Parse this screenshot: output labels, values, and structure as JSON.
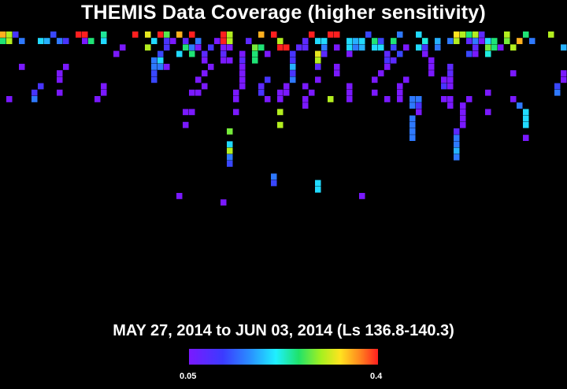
{
  "title": "THEMIS Data Coverage (higher sensitivity)",
  "date_range": "MAY 27, 2014 to JUN 03, 2014 (Ls 136.8-140.3)",
  "chart_data": {
    "type": "heatmap",
    "title": "THEMIS Data Coverage (higher sensitivity)",
    "subtitle": "MAY 27, 2014 to JUN 03, 2014 (Ls 136.8-140.3)",
    "colorbar": {
      "min": 0.05,
      "max": 0.4,
      "min_label": "0.05",
      "max_label": "0.4"
    },
    "grid": {
      "cols": 90,
      "rows": 28
    },
    "cells": [
      [
        0,
        0,
        0.35
      ],
      [
        1,
        0,
        0.3
      ],
      [
        2,
        0,
        0.1
      ],
      [
        8,
        0,
        0.12
      ],
      [
        12,
        0,
        0.4
      ],
      [
        13,
        0,
        0.4
      ],
      [
        16,
        0,
        0.24
      ],
      [
        21,
        0,
        0.4
      ],
      [
        23,
        0,
        0.32
      ],
      [
        25,
        0,
        0.4
      ],
      [
        26,
        0,
        0.27
      ],
      [
        28,
        0,
        0.35
      ],
      [
        30,
        0,
        0.4
      ],
      [
        35,
        0,
        0.4
      ],
      [
        36,
        0,
        0.3
      ],
      [
        41,
        0,
        0.35
      ],
      [
        43,
        0,
        0.4
      ],
      [
        49,
        0,
        0.4
      ],
      [
        52,
        0,
        0.4
      ],
      [
        53,
        0,
        0.4
      ],
      [
        58,
        0,
        0.12
      ],
      [
        63,
        0,
        0.15
      ],
      [
        66,
        0,
        0.2
      ],
      [
        72,
        0,
        0.33
      ],
      [
        73,
        0,
        0.3
      ],
      [
        74,
        0,
        0.25
      ],
      [
        75,
        0,
        0.3
      ],
      [
        76,
        0,
        0.08
      ],
      [
        80,
        0,
        0.3
      ],
      [
        83,
        0,
        0.25
      ],
      [
        87,
        0,
        0.3
      ],
      [
        0,
        1,
        0.25
      ],
      [
        1,
        1,
        0.3
      ],
      [
        3,
        1,
        0.15
      ],
      [
        6,
        1,
        0.2
      ],
      [
        7,
        1,
        0.18
      ],
      [
        9,
        1,
        0.15
      ],
      [
        10,
        1,
        0.1
      ],
      [
        13,
        1,
        0.05
      ],
      [
        14,
        1,
        0.25
      ],
      [
        16,
        1,
        0.2
      ],
      [
        24,
        1,
        0.2
      ],
      [
        26,
        1,
        0.1
      ],
      [
        27,
        1,
        0.05
      ],
      [
        29,
        1,
        0.08
      ],
      [
        31,
        1,
        0.15
      ],
      [
        34,
        1,
        0.05
      ],
      [
        35,
        1,
        0.4
      ],
      [
        36,
        1,
        0.3
      ],
      [
        39,
        1,
        0.08
      ],
      [
        44,
        1,
        0.3
      ],
      [
        48,
        1,
        0.08
      ],
      [
        50,
        1,
        0.2
      ],
      [
        51,
        1,
        0.2
      ],
      [
        55,
        1,
        0.2
      ],
      [
        56,
        1,
        0.18
      ],
      [
        57,
        1,
        0.2
      ],
      [
        59,
        1,
        0.25
      ],
      [
        60,
        1,
        0.12
      ],
      [
        62,
        1,
        0.25
      ],
      [
        67,
        1,
        0.22
      ],
      [
        69,
        1,
        0.18
      ],
      [
        71,
        1,
        0.15
      ],
      [
        72,
        1,
        0.3
      ],
      [
        74,
        1,
        0.08
      ],
      [
        75,
        1,
        0.15
      ],
      [
        76,
        1,
        0.05
      ],
      [
        77,
        1,
        0.2
      ],
      [
        78,
        1,
        0.25
      ],
      [
        80,
        1,
        0.28
      ],
      [
        82,
        1,
        0.35
      ],
      [
        84,
        1,
        0.15
      ],
      [
        19,
        2,
        0.05
      ],
      [
        23,
        2,
        0.3
      ],
      [
        26,
        2,
        0.1
      ],
      [
        29,
        2,
        0.25
      ],
      [
        30,
        2,
        0.15
      ],
      [
        31,
        2,
        0.05
      ],
      [
        33,
        2,
        0.1
      ],
      [
        35,
        2,
        0.05
      ],
      [
        36,
        2,
        0.05
      ],
      [
        40,
        2,
        0.28
      ],
      [
        41,
        2,
        0.25
      ],
      [
        44,
        2,
        0.4
      ],
      [
        45,
        2,
        0.4
      ],
      [
        47,
        2,
        0.08
      ],
      [
        48,
        2,
        0.08
      ],
      [
        51,
        2,
        0.15
      ],
      [
        53,
        2,
        0.05
      ],
      [
        55,
        2,
        0.2
      ],
      [
        56,
        2,
        0.15
      ],
      [
        57,
        2,
        0.18
      ],
      [
        59,
        2,
        0.2
      ],
      [
        60,
        2,
        0.2
      ],
      [
        62,
        2,
        0.12
      ],
      [
        64,
        2,
        0.05
      ],
      [
        66,
        2,
        0.2
      ],
      [
        67,
        2,
        0.1
      ],
      [
        69,
        2,
        0.15
      ],
      [
        75,
        2,
        0.08
      ],
      [
        77,
        2,
        0.28
      ],
      [
        78,
        2,
        0.25
      ],
      [
        79,
        2,
        0.05
      ],
      [
        81,
        2,
        0.3
      ],
      [
        89,
        2,
        0.18
      ],
      [
        18,
        3,
        0.05
      ],
      [
        25,
        3,
        0.12
      ],
      [
        28,
        3,
        0.2
      ],
      [
        30,
        3,
        0.25
      ],
      [
        32,
        3,
        0.08
      ],
      [
        35,
        3,
        0.08
      ],
      [
        38,
        3,
        0.05
      ],
      [
        40,
        3,
        0.25
      ],
      [
        42,
        3,
        0.05
      ],
      [
        46,
        3,
        0.1
      ],
      [
        50,
        3,
        0.32
      ],
      [
        51,
        3,
        0.08
      ],
      [
        55,
        3,
        0.05
      ],
      [
        61,
        3,
        0.08
      ],
      [
        63,
        3,
        0.12
      ],
      [
        67,
        3,
        0.05
      ],
      [
        74,
        3,
        0.12
      ],
      [
        75,
        3,
        0.05
      ],
      [
        77,
        3,
        0.22
      ],
      [
        24,
        4,
        0.15
      ],
      [
        25,
        4,
        0.2
      ],
      [
        32,
        4,
        0.05
      ],
      [
        35,
        4,
        0.05
      ],
      [
        36,
        4,
        0.05
      ],
      [
        38,
        4,
        0.08
      ],
      [
        40,
        4,
        0.25
      ],
      [
        46,
        4,
        0.1
      ],
      [
        50,
        4,
        0.3
      ],
      [
        61,
        4,
        0.1
      ],
      [
        62,
        4,
        0.08
      ],
      [
        68,
        4,
        0.05
      ],
      [
        3,
        5,
        0.05
      ],
      [
        10,
        5,
        0.05
      ],
      [
        24,
        5,
        0.15
      ],
      [
        25,
        5,
        0.15
      ],
      [
        26,
        5,
        0.05
      ],
      [
        33,
        5,
        0.05
      ],
      [
        38,
        5,
        0.05
      ],
      [
        46,
        5,
        0.18
      ],
      [
        50,
        5,
        0.08
      ],
      [
        53,
        5,
        0.05
      ],
      [
        61,
        5,
        0.05
      ],
      [
        68,
        5,
        0.05
      ],
      [
        71,
        5,
        0.08
      ],
      [
        9,
        6,
        0.05
      ],
      [
        24,
        6,
        0.12
      ],
      [
        32,
        6,
        0.05
      ],
      [
        38,
        6,
        0.05
      ],
      [
        46,
        6,
        0.1
      ],
      [
        53,
        6,
        0.05
      ],
      [
        60,
        6,
        0.05
      ],
      [
        68,
        6,
        0.05
      ],
      [
        71,
        6,
        0.08
      ],
      [
        81,
        6,
        0.05
      ],
      [
        89,
        6,
        0.05
      ],
      [
        9,
        7,
        0.05
      ],
      [
        24,
        7,
        0.12
      ],
      [
        31,
        7,
        0.05
      ],
      [
        38,
        7,
        0.05
      ],
      [
        42,
        7,
        0.1
      ],
      [
        46,
        7,
        0.15
      ],
      [
        50,
        7,
        0.05
      ],
      [
        59,
        7,
        0.05
      ],
      [
        64,
        7,
        0.05
      ],
      [
        70,
        7,
        0.05
      ],
      [
        71,
        7,
        0.05
      ],
      [
        89,
        7,
        0.05
      ],
      [
        6,
        8,
        0.1
      ],
      [
        16,
        8,
        0.05
      ],
      [
        32,
        8,
        0.05
      ],
      [
        38,
        8,
        0.05
      ],
      [
        41,
        8,
        0.08
      ],
      [
        45,
        8,
        0.05
      ],
      [
        48,
        8,
        0.05
      ],
      [
        55,
        8,
        0.05
      ],
      [
        63,
        8,
        0.05
      ],
      [
        70,
        8,
        0.1
      ],
      [
        71,
        8,
        0.05
      ],
      [
        88,
        8,
        0.12
      ],
      [
        5,
        9,
        0.1
      ],
      [
        9,
        9,
        0.05
      ],
      [
        16,
        9,
        0.05
      ],
      [
        30,
        9,
        0.05
      ],
      [
        31,
        9,
        0.05
      ],
      [
        37,
        9,
        0.05
      ],
      [
        41,
        9,
        0.1
      ],
      [
        44,
        9,
        0.05
      ],
      [
        45,
        9,
        0.05
      ],
      [
        49,
        9,
        0.05
      ],
      [
        55,
        9,
        0.05
      ],
      [
        59,
        9,
        0.05
      ],
      [
        63,
        9,
        0.05
      ],
      [
        77,
        9,
        0.05
      ],
      [
        88,
        9,
        0.15
      ],
      [
        1,
        10,
        0.05
      ],
      [
        5,
        10,
        0.15
      ],
      [
        15,
        10,
        0.05
      ],
      [
        37,
        10,
        0.05
      ],
      [
        42,
        10,
        0.05
      ],
      [
        44,
        10,
        0.05
      ],
      [
        48,
        10,
        0.05
      ],
      [
        52,
        10,
        0.3
      ],
      [
        55,
        10,
        0.05
      ],
      [
        61,
        10,
        0.05
      ],
      [
        63,
        10,
        0.05
      ],
      [
        65,
        10,
        0.15
      ],
      [
        66,
        10,
        0.15
      ],
      [
        70,
        10,
        0.05
      ],
      [
        71,
        10,
        0.05
      ],
      [
        74,
        10,
        0.05
      ],
      [
        81,
        10,
        0.05
      ],
      [
        48,
        11,
        0.05
      ],
      [
        65,
        11,
        0.15
      ],
      [
        66,
        11,
        0.1
      ],
      [
        71,
        11,
        0.05
      ],
      [
        73,
        11,
        0.05
      ],
      [
        82,
        11,
        0.15
      ],
      [
        29,
        12,
        0.05
      ],
      [
        30,
        12,
        0.05
      ],
      [
        37,
        12,
        0.05
      ],
      [
        44,
        12,
        0.3
      ],
      [
        66,
        12,
        0.05
      ],
      [
        73,
        12,
        0.05
      ],
      [
        77,
        12,
        0.05
      ],
      [
        83,
        12,
        0.2
      ],
      [
        65,
        13,
        0.15
      ],
      [
        73,
        13,
        0.05
      ],
      [
        83,
        13,
        0.2
      ],
      [
        29,
        14,
        0.05
      ],
      [
        44,
        14,
        0.3
      ],
      [
        65,
        14,
        0.15
      ],
      [
        73,
        14,
        0.05
      ],
      [
        83,
        14,
        0.2
      ],
      [
        36,
        15,
        0.28
      ],
      [
        65,
        15,
        0.15
      ],
      [
        72,
        15,
        0.08
      ],
      [
        65,
        16,
        0.15
      ],
      [
        72,
        16,
        0.15
      ],
      [
        83,
        16,
        0.05
      ],
      [
        36,
        17,
        0.2
      ],
      [
        72,
        17,
        0.15
      ],
      [
        36,
        18,
        0.3
      ],
      [
        72,
        18,
        0.18
      ],
      [
        36,
        19,
        0.15
      ],
      [
        72,
        19,
        0.15
      ],
      [
        36,
        20,
        0.12
      ],
      [
        43,
        22,
        0.15
      ],
      [
        43,
        23,
        0.12
      ],
      [
        50,
        23,
        0.2
      ],
      [
        50,
        24,
        0.2
      ],
      [
        28,
        25,
        0.05
      ],
      [
        57,
        25,
        0.05
      ],
      [
        35,
        26,
        0.05
      ]
    ]
  }
}
